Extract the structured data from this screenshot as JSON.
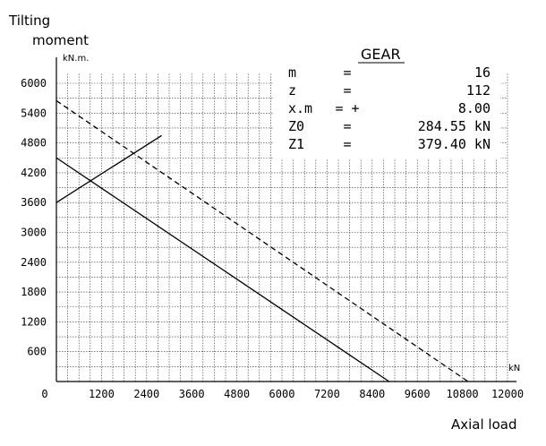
{
  "chart_data": {
    "type": "line",
    "title": "",
    "ylabel_lines": [
      "Tilting",
      "moment"
    ],
    "y_unit": "kN.m.",
    "xlabel": "Axial load",
    "x_unit": "kN",
    "xlim": [
      0,
      12000
    ],
    "ylim": [
      0,
      6200
    ],
    "x_ticks": [
      "0",
      "1200",
      "2400",
      "3600",
      "4800",
      "6000",
      "7200",
      "8400",
      "9600",
      "10800",
      "12000"
    ],
    "y_ticks": [
      "600",
      "1200",
      "1800",
      "2400",
      "3000",
      "3600",
      "4200",
      "4800",
      "5400",
      "6000"
    ],
    "x_tick_values": [
      0,
      1200,
      2400,
      3600,
      4800,
      6000,
      7200,
      8400,
      9600,
      10800,
      12000
    ],
    "y_tick_values": [
      600,
      1200,
      1800,
      2400,
      3000,
      3600,
      4200,
      4800,
      5400,
      6000
    ],
    "grid": true,
    "series": [
      {
        "style": "solid",
        "x": [
          0,
          8850
        ],
        "y": [
          4500,
          0
        ]
      },
      {
        "style": "dashed",
        "x": [
          0,
          10950
        ],
        "y": [
          5650,
          0
        ]
      },
      {
        "style": "solid",
        "x": [
          0,
          2800
        ],
        "y": [
          3600,
          4950
        ]
      }
    ],
    "info_box": {
      "title": "GEAR",
      "rows": [
        {
          "label": "m",
          "eq": "=",
          "value": "16"
        },
        {
          "label": "z",
          "eq": "=",
          "value": "112"
        },
        {
          "label": "x.m",
          "eq": "= +",
          "value": "8.00"
        },
        {
          "label": "Z0",
          "eq": "=",
          "value": "284.55 kN"
        },
        {
          "label": "Z1",
          "eq": "=",
          "value": "379.40 kN"
        }
      ]
    }
  }
}
